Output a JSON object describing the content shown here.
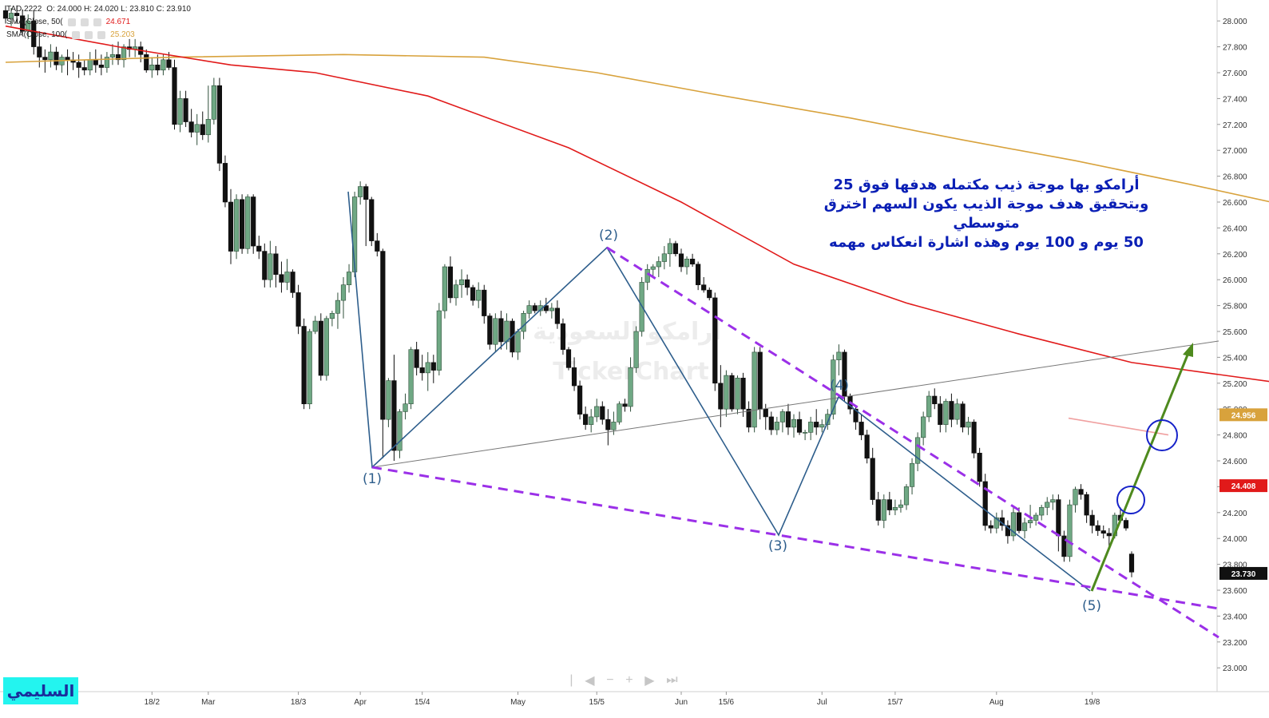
{
  "header": {
    "symbol": "TAD.2222",
    "ohlc_text": "O: 24.000  H: 24.020  L: 23.810  C: 23.910"
  },
  "legend": [
    {
      "label": "SMA(Close, 50(",
      "value": "24.671",
      "color": "#e11a1a"
    },
    {
      "label": "SMA(Close, 100(",
      "value": "25.203",
      "color": "#d8a23c"
    }
  ],
  "annotation_lines": [
    "أرامكو بها موجة ذيب مكتمله هدفها فوق 25",
    "وبتحقيق هدف موجة الذيب يكون السهم اخترق متوسطي",
    "50 يوم و 100 يوم وهذه اشارة انعكاس مهمه"
  ],
  "brand_label": "السليمي",
  "watermark": {
    "arabic": "ارامكو السعودية",
    "latin": "TickerChart"
  },
  "nav_icons": [
    "separator-icon",
    "chevron-left-icon",
    "minus-icon",
    "plus-icon",
    "chevron-right-icon",
    "skip-end-icon"
  ],
  "colors": {
    "up": "#6fa884",
    "down": "#111111",
    "sma50": "#e11a1a",
    "sma100": "#d8a23c",
    "wave": "#2e5e8c",
    "channel": "#9b30e8",
    "projection": "#4e8a1e",
    "circle": "#1622c9"
  },
  "chart_data": {
    "type": "candlestick",
    "title": "",
    "y_axis": {
      "ticks": [
        23.0,
        23.2,
        23.4,
        23.6,
        23.8,
        24.0,
        24.2,
        24.4,
        24.6,
        24.8,
        25.0,
        25.2,
        25.4,
        25.6,
        25.8,
        26.0,
        26.2,
        26.4,
        26.6,
        26.8,
        27.0,
        27.2,
        27.4,
        27.6,
        27.8,
        28.0
      ],
      "tick_labels": [
        "23.000",
        "23.200",
        "23.400",
        "23.600",
        "23.800",
        "24.000",
        "24.200",
        "24.400",
        "24.600",
        "24.800",
        "25.000",
        "25.200",
        "25.400",
        "25.600",
        "25.800",
        "26.000",
        "26.200",
        "26.400",
        "26.600",
        "26.800",
        "27.000",
        "27.200",
        "27.400",
        "27.600",
        "27.800",
        "28.000"
      ],
      "range": [
        22.96,
        28.15
      ]
    },
    "x_axis": {
      "labels": [
        "18/2",
        "Mar",
        "18/3",
        "Apr",
        "15/4",
        "May",
        "15/5",
        "Jun",
        "15/6",
        "Jul",
        "15/7",
        "Aug",
        "19/8"
      ],
      "label_bar_index": [
        26,
        36,
        52,
        63,
        74,
        91,
        105,
        120,
        128,
        145,
        158,
        176,
        193
      ],
      "bar_count": 196
    },
    "candles": [
      [
        28.08,
        28.12,
        27.98,
        28.02
      ],
      [
        28.02,
        28.1,
        27.96,
        28.06
      ],
      [
        28.06,
        28.12,
        27.98,
        28.04
      ],
      [
        28.04,
        28.09,
        27.9,
        27.92
      ],
      [
        27.92,
        28.05,
        27.86,
        28.0
      ],
      [
        28.0,
        28.08,
        27.74,
        27.8
      ],
      [
        27.8,
        27.92,
        27.64,
        27.72
      ],
      [
        27.72,
        27.78,
        27.6,
        27.7
      ],
      [
        27.7,
        27.82,
        27.64,
        27.76
      ],
      [
        27.76,
        27.8,
        27.62,
        27.66
      ],
      [
        27.66,
        27.74,
        27.6,
        27.72
      ],
      [
        27.72,
        27.78,
        27.58,
        27.7
      ],
      [
        27.7,
        27.76,
        27.62,
        27.68
      ],
      [
        27.68,
        27.74,
        27.56,
        27.64
      ],
      [
        27.64,
        27.7,
        27.58,
        27.62
      ],
      [
        27.62,
        27.76,
        27.58,
        27.7
      ],
      [
        27.7,
        27.78,
        27.6,
        27.66
      ],
      [
        27.66,
        27.74,
        27.58,
        27.64
      ],
      [
        27.64,
        27.76,
        27.6,
        27.72
      ],
      [
        27.72,
        27.82,
        27.66,
        27.74
      ],
      [
        27.74,
        27.84,
        27.66,
        27.7
      ],
      [
        27.7,
        27.82,
        27.64,
        27.8
      ],
      [
        27.8,
        27.86,
        27.72,
        27.78
      ],
      [
        27.78,
        27.86,
        27.72,
        27.8
      ],
      [
        27.8,
        27.84,
        27.68,
        27.74
      ],
      [
        27.74,
        27.78,
        27.6,
        27.62
      ],
      [
        27.62,
        27.72,
        27.56,
        27.66
      ],
      [
        27.66,
        27.74,
        27.58,
        27.62
      ],
      [
        27.62,
        27.74,
        27.58,
        27.7
      ],
      [
        27.7,
        27.76,
        27.62,
        27.64
      ],
      [
        27.64,
        27.7,
        27.16,
        27.2
      ],
      [
        27.2,
        27.46,
        27.14,
        27.4
      ],
      [
        27.4,
        27.46,
        27.18,
        27.22
      ],
      [
        27.22,
        27.32,
        27.1,
        27.14
      ],
      [
        27.14,
        27.28,
        27.04,
        27.2
      ],
      [
        27.2,
        27.3,
        27.08,
        27.12
      ],
      [
        27.12,
        27.5,
        27.06,
        27.24
      ],
      [
        27.24,
        27.56,
        27.2,
        27.5
      ],
      [
        27.5,
        27.56,
        26.84,
        26.9
      ],
      [
        26.9,
        26.96,
        26.56,
        26.6
      ],
      [
        26.6,
        26.7,
        26.12,
        26.22
      ],
      [
        26.22,
        26.66,
        26.16,
        26.62
      ],
      [
        26.62,
        26.66,
        26.2,
        26.24
      ],
      [
        26.24,
        26.66,
        26.2,
        26.64
      ],
      [
        26.64,
        26.66,
        26.2,
        26.26
      ],
      [
        26.26,
        26.34,
        26.16,
        26.22
      ],
      [
        26.22,
        26.28,
        25.94,
        26.0
      ],
      [
        26.0,
        26.3,
        25.94,
        26.2
      ],
      [
        26.2,
        26.26,
        25.94,
        26.04
      ],
      [
        26.04,
        26.14,
        25.9,
        25.98
      ],
      [
        25.98,
        26.16,
        25.92,
        26.06
      ],
      [
        26.06,
        26.08,
        25.86,
        25.9
      ],
      [
        25.9,
        25.96,
        25.58,
        25.64
      ],
      [
        25.64,
        25.7,
        25.0,
        25.04
      ],
      [
        25.04,
        25.62,
        25.0,
        25.6
      ],
      [
        25.6,
        25.72,
        25.58,
        25.68
      ],
      [
        25.68,
        25.74,
        25.22,
        25.26
      ],
      [
        25.26,
        25.72,
        25.22,
        25.7
      ],
      [
        25.7,
        25.76,
        25.64,
        25.74
      ],
      [
        25.74,
        25.9,
        25.62,
        25.84
      ],
      [
        25.84,
        26.02,
        25.7,
        25.96
      ],
      [
        25.96,
        26.12,
        25.9,
        26.06
      ],
      [
        26.06,
        26.68,
        26.02,
        26.64
      ],
      [
        26.64,
        26.76,
        26.58,
        26.72
      ],
      [
        26.72,
        26.74,
        26.26,
        26.62
      ],
      [
        26.62,
        26.64,
        26.26,
        26.3
      ],
      [
        26.3,
        26.36,
        26.18,
        26.22
      ],
      [
        26.22,
        26.24,
        24.62,
        24.92
      ],
      [
        24.92,
        25.24,
        24.86,
        25.22
      ],
      [
        25.22,
        25.42,
        24.6,
        24.68
      ],
      [
        24.68,
        25.0,
        24.62,
        24.98
      ],
      [
        24.98,
        25.12,
        24.92,
        25.04
      ],
      [
        25.04,
        25.48,
        25.0,
        25.46
      ],
      [
        25.46,
        25.52,
        25.26,
        25.32
      ],
      [
        25.32,
        25.42,
        25.22,
        25.28
      ],
      [
        25.28,
        25.44,
        25.14,
        25.36
      ],
      [
        25.36,
        25.42,
        25.2,
        25.3
      ],
      [
        25.3,
        25.82,
        25.26,
        25.76
      ],
      [
        25.76,
        26.12,
        25.7,
        26.1
      ],
      [
        26.1,
        26.18,
        25.82,
        25.86
      ],
      [
        25.86,
        26.0,
        25.8,
        25.96
      ],
      [
        25.96,
        26.08,
        25.86,
        26.0
      ],
      [
        26.0,
        26.04,
        25.88,
        25.94
      ],
      [
        25.94,
        25.96,
        25.8,
        25.84
      ],
      [
        25.84,
        25.98,
        25.78,
        25.92
      ],
      [
        25.92,
        25.96,
        25.66,
        25.72
      ],
      [
        25.72,
        25.74,
        25.46,
        25.5
      ],
      [
        25.5,
        25.74,
        25.44,
        25.7
      ],
      [
        25.7,
        25.76,
        25.46,
        25.52
      ],
      [
        25.52,
        25.74,
        25.46,
        25.68
      ],
      [
        25.68,
        25.7,
        25.4,
        25.44
      ],
      [
        25.44,
        25.62,
        25.38,
        25.6
      ],
      [
        25.6,
        25.76,
        25.54,
        25.74
      ],
      [
        25.74,
        25.84,
        25.7,
        25.8
      ],
      [
        25.8,
        25.82,
        25.74,
        25.76
      ],
      [
        25.76,
        25.84,
        25.72,
        25.8
      ],
      [
        25.8,
        25.86,
        25.74,
        25.76
      ],
      [
        25.76,
        25.82,
        25.7,
        25.78
      ],
      [
        25.78,
        25.84,
        25.62,
        25.66
      ],
      [
        25.66,
        25.7,
        25.42,
        25.46
      ],
      [
        25.46,
        25.48,
        25.3,
        25.32
      ],
      [
        25.32,
        25.4,
        25.14,
        25.18
      ],
      [
        25.18,
        25.22,
        24.92,
        24.96
      ],
      [
        24.96,
        25.02,
        24.84,
        24.88
      ],
      [
        24.88,
        25.0,
        24.82,
        24.94
      ],
      [
        24.94,
        25.08,
        24.9,
        25.02
      ],
      [
        25.02,
        25.06,
        24.88,
        24.92
      ],
      [
        24.92,
        25.0,
        24.72,
        24.84
      ],
      [
        24.84,
        24.98,
        24.8,
        24.9
      ],
      [
        24.9,
        25.06,
        24.88,
        25.04
      ],
      [
        25.04,
        25.08,
        24.98,
        25.02
      ],
      [
        25.02,
        25.4,
        24.98,
        25.32
      ],
      [
        25.32,
        25.64,
        25.28,
        25.6
      ],
      [
        25.6,
        26.02,
        25.56,
        25.98
      ],
      [
        25.98,
        26.12,
        25.92,
        26.08
      ],
      [
        26.08,
        26.12,
        26.02,
        26.1
      ],
      [
        26.1,
        26.18,
        26.02,
        26.14
      ],
      [
        26.14,
        26.26,
        26.08,
        26.2
      ],
      [
        26.2,
        26.32,
        26.1,
        26.28
      ],
      [
        26.28,
        26.3,
        26.18,
        26.2
      ],
      [
        26.2,
        26.24,
        26.06,
        26.1
      ],
      [
        26.1,
        26.18,
        26.04,
        26.16
      ],
      [
        26.16,
        26.2,
        26.1,
        26.12
      ],
      [
        26.12,
        26.14,
        25.92,
        25.96
      ],
      [
        25.96,
        26.02,
        25.9,
        25.92
      ],
      [
        25.92,
        25.94,
        25.84,
        25.86
      ],
      [
        25.86,
        25.9,
        25.14,
        25.2
      ],
      [
        25.2,
        25.34,
        24.86,
        25.0
      ],
      [
        25.0,
        25.3,
        24.94,
        25.26
      ],
      [
        25.26,
        25.28,
        24.98,
        25.0
      ],
      [
        25.0,
        25.26,
        24.96,
        25.24
      ],
      [
        25.24,
        25.28,
        24.94,
        25.0
      ],
      [
        25.0,
        25.06,
        24.82,
        24.86
      ],
      [
        24.86,
        25.48,
        24.82,
        25.44
      ],
      [
        25.44,
        25.48,
        24.92,
        25.0
      ],
      [
        25.0,
        25.04,
        24.84,
        24.94
      ],
      [
        24.94,
        24.98,
        24.8,
        24.84
      ],
      [
        24.84,
        24.94,
        24.8,
        24.9
      ],
      [
        24.9,
        25.0,
        24.82,
        24.98
      ],
      [
        24.98,
        25.04,
        24.8,
        24.86
      ],
      [
        24.86,
        24.96,
        24.78,
        24.92
      ],
      [
        24.92,
        24.98,
        24.8,
        24.82
      ],
      [
        24.82,
        24.84,
        24.76,
        24.82
      ],
      [
        24.82,
        24.94,
        24.76,
        24.9
      ],
      [
        24.9,
        25.0,
        24.8,
        24.86
      ],
      [
        24.86,
        24.92,
        24.82,
        24.88
      ],
      [
        24.88,
        25.0,
        24.84,
        24.96
      ],
      [
        24.96,
        25.42,
        24.92,
        25.38
      ],
      [
        25.38,
        25.5,
        25.26,
        25.44
      ],
      [
        25.44,
        25.46,
        25.06,
        25.1
      ],
      [
        25.1,
        25.12,
        24.96,
        25.0
      ],
      [
        25.0,
        25.02,
        24.84,
        24.9
      ],
      [
        24.9,
        24.96,
        24.76,
        24.8
      ],
      [
        24.8,
        24.84,
        24.58,
        24.62
      ],
      [
        24.62,
        24.7,
        24.26,
        24.3
      ],
      [
        24.3,
        24.36,
        24.1,
        24.14
      ],
      [
        24.14,
        24.34,
        24.08,
        24.3
      ],
      [
        24.3,
        24.36,
        24.18,
        24.22
      ],
      [
        24.22,
        24.3,
        24.18,
        24.24
      ],
      [
        24.24,
        24.3,
        24.2,
        24.26
      ],
      [
        24.26,
        24.42,
        24.22,
        24.4
      ],
      [
        24.4,
        24.62,
        24.34,
        24.58
      ],
      [
        24.58,
        24.82,
        24.52,
        24.78
      ],
      [
        24.78,
        24.98,
        24.72,
        24.94
      ],
      [
        24.94,
        25.14,
        24.9,
        25.1
      ],
      [
        25.1,
        25.16,
        25.0,
        25.04
      ],
      [
        25.04,
        25.1,
        24.82,
        24.88
      ],
      [
        24.88,
        25.08,
        24.82,
        25.06
      ],
      [
        25.06,
        25.12,
        24.86,
        24.92
      ],
      [
        24.92,
        25.08,
        24.88,
        25.04
      ],
      [
        25.04,
        25.06,
        24.82,
        24.86
      ],
      [
        24.86,
        24.94,
        24.8,
        24.9
      ],
      [
        24.9,
        24.92,
        24.62,
        24.66
      ],
      [
        24.66,
        24.7,
        24.4,
        24.44
      ],
      [
        24.44,
        24.5,
        24.06,
        24.1
      ],
      [
        24.1,
        24.14,
        24.04,
        24.08
      ],
      [
        24.08,
        24.2,
        24.04,
        24.16
      ],
      [
        24.16,
        24.22,
        24.06,
        24.1
      ],
      [
        24.1,
        24.14,
        23.96,
        24.02
      ],
      [
        24.02,
        24.24,
        23.98,
        24.2
      ],
      [
        24.2,
        24.24,
        24.04,
        24.06
      ],
      [
        24.06,
        24.16,
        24.0,
        24.12
      ],
      [
        24.12,
        24.26,
        24.08,
        24.14
      ],
      [
        24.14,
        24.2,
        24.1,
        24.18
      ],
      [
        24.18,
        24.26,
        24.14,
        24.24
      ],
      [
        24.24,
        24.32,
        24.18,
        24.28
      ],
      [
        24.28,
        24.34,
        24.22,
        24.3
      ],
      [
        24.3,
        24.34,
        23.9,
        24.02
      ],
      [
        24.02,
        24.06,
        23.82,
        23.86
      ],
      [
        23.86,
        24.3,
        23.82,
        24.26
      ],
      [
        24.26,
        24.4,
        24.2,
        24.38
      ],
      [
        24.38,
        24.42,
        24.3,
        24.34
      ],
      [
        24.34,
        24.36,
        24.12,
        24.18
      ],
      [
        24.18,
        24.22,
        24.04,
        24.1
      ],
      [
        24.1,
        24.14,
        24.02,
        24.06
      ],
      [
        24.06,
        24.1,
        24.0,
        24.04
      ],
      [
        24.04,
        24.08,
        23.92,
        24.02
      ],
      [
        24.02,
        24.2,
        24.0,
        24.18
      ],
      [
        24.18,
        24.24,
        24.12,
        24.14
      ],
      [
        24.14,
        24.16,
        24.06,
        24.08
      ],
      [
        23.88,
        23.9,
        23.7,
        23.74
      ]
    ],
    "sma50": [
      [
        0,
        27.96
      ],
      [
        20,
        27.8
      ],
      [
        40,
        27.66
      ],
      [
        55,
        27.6
      ],
      [
        75,
        27.42
      ],
      [
        100,
        27.02
      ],
      [
        120,
        26.6
      ],
      [
        140,
        26.12
      ],
      [
        160,
        25.82
      ],
      [
        180,
        25.58
      ],
      [
        200,
        25.36
      ],
      [
        230,
        25.18
      ],
      [
        260,
        24.98
      ],
      [
        290,
        24.86
      ],
      [
        320,
        24.66
      ],
      [
        350,
        24.52
      ],
      [
        380,
        24.42
      ],
      [
        410,
        24.33
      ],
      [
        430,
        24.31
      ]
    ],
    "sma100": [
      [
        0,
        27.68
      ],
      [
        30,
        27.72
      ],
      [
        60,
        27.74
      ],
      [
        85,
        27.72
      ],
      [
        105,
        27.6
      ],
      [
        125,
        27.44
      ],
      [
        150,
        27.25
      ],
      [
        170,
        27.08
      ],
      [
        190,
        26.92
      ],
      [
        210,
        26.74
      ],
      [
        230,
        26.55
      ],
      [
        250,
        26.38
      ],
      [
        270,
        26.18
      ],
      [
        290,
        26.02
      ],
      [
        310,
        25.82
      ],
      [
        330,
        25.62
      ],
      [
        350,
        25.38
      ],
      [
        370,
        25.14
      ],
      [
        390,
        24.96
      ],
      [
        400,
        24.92
      ],
      [
        410,
        24.84
      ],
      [
        420,
        24.77
      ],
      [
        430,
        24.74
      ]
    ],
    "wave_labels": [
      "(1)",
      "(2)",
      "(3)",
      "(4)",
      "(5)"
    ],
    "price_tags": [
      {
        "label": "24.956",
        "value": 24.956,
        "color": "#d8a23c"
      },
      {
        "label": "24.408",
        "value": 24.408,
        "color": "#e11a1a"
      },
      {
        "label": "23.730",
        "value": 23.73,
        "color": "#111111"
      }
    ]
  }
}
